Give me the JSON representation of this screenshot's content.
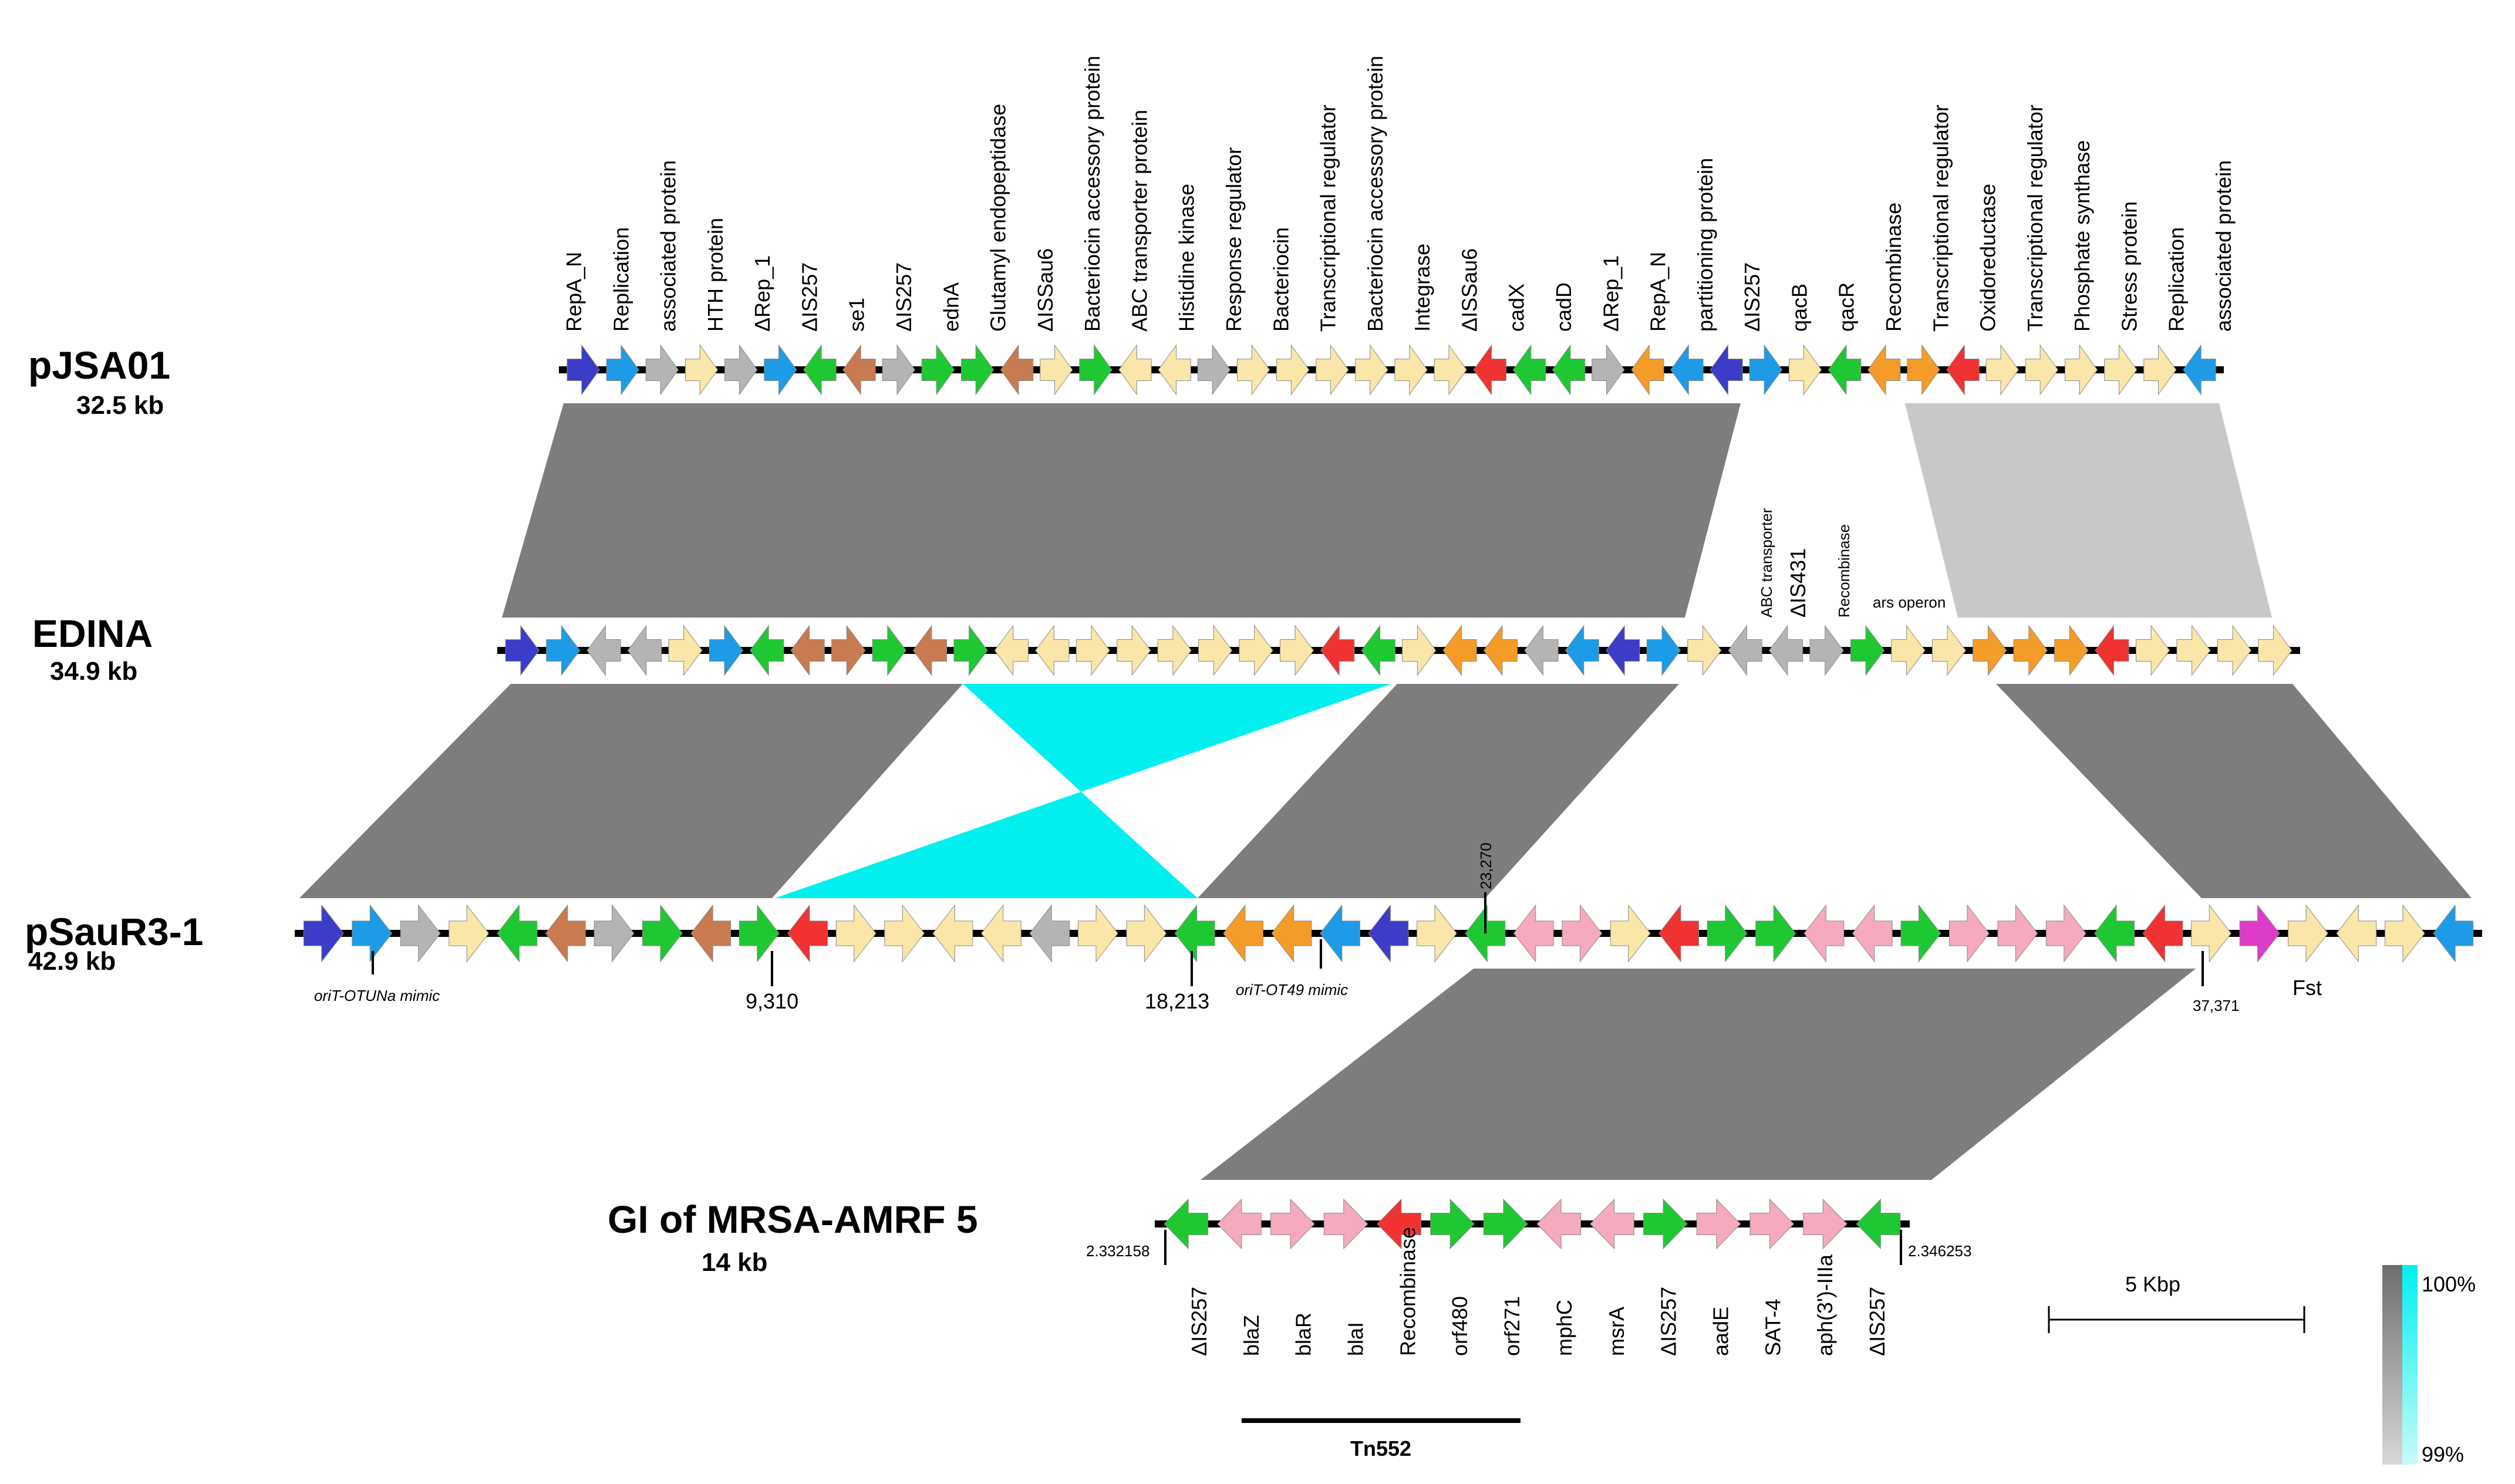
{
  "colors": {
    "blue": "#3C3CC8",
    "ltblue": "#1E9BE6",
    "gray": "#B4B4B4",
    "cream": "#FAE6A8",
    "green": "#1EC832",
    "brown": "#C87A50",
    "red": "#F03232",
    "orange": "#F59B28",
    "pink": "#F5AABE",
    "magenta": "#DC3CC8",
    "link": "#7D7D7D",
    "linkLight": "#C8C8C8",
    "cyan": "#00F0F0"
  },
  "tracks": [
    {
      "id": "pjsa01",
      "name": "pJSA01",
      "size": "32.5 kb",
      "genes": [
        [
          "blue",
          1
        ],
        [
          "ltblue",
          1
        ],
        [
          "gray",
          1
        ],
        [
          "cream",
          1
        ],
        [
          "gray",
          1
        ],
        [
          "ltblue",
          1
        ],
        [
          "green",
          -1
        ],
        [
          "brown",
          -1
        ],
        [
          "gray",
          1
        ],
        [
          "green",
          1
        ],
        [
          "green",
          1
        ],
        [
          "brown",
          -1
        ],
        [
          "cream",
          1
        ],
        [
          "green",
          1
        ],
        [
          "cream",
          -1
        ],
        [
          "cream",
          -1
        ],
        [
          "gray",
          1
        ],
        [
          "cream",
          1
        ],
        [
          "cream",
          1
        ],
        [
          "cream",
          1
        ],
        [
          "cream",
          1
        ],
        [
          "cream",
          1
        ],
        [
          "cream",
          1
        ],
        [
          "red",
          -1
        ],
        [
          "green",
          -1
        ],
        [
          "green",
          -1
        ],
        [
          "gray",
          1
        ],
        [
          "orange",
          -1
        ],
        [
          "ltblue",
          -1
        ],
        [
          "blue",
          -1
        ],
        [
          "ltblue",
          1
        ],
        [
          "cream",
          1
        ],
        [
          "green",
          -1
        ],
        [
          "orange",
          -1
        ],
        [
          "orange",
          1
        ],
        [
          "red",
          -1
        ],
        [
          "cream",
          1
        ],
        [
          "cream",
          1
        ],
        [
          "cream",
          1
        ],
        [
          "cream",
          1
        ],
        [
          "cream",
          1
        ],
        [
          "ltblue",
          -1
        ]
      ]
    },
    {
      "id": "edina",
      "name": "EDINA",
      "size": "34.9 kb",
      "genes": [
        [
          "blue",
          1
        ],
        [
          "ltblue",
          1
        ],
        [
          "gray",
          -1
        ],
        [
          "gray",
          -1
        ],
        [
          "cream",
          1
        ],
        [
          "ltblue",
          1
        ],
        [
          "green",
          -1
        ],
        [
          "brown",
          -1
        ],
        [
          "brown",
          1
        ],
        [
          "green",
          1
        ],
        [
          "brown",
          -1
        ],
        [
          "green",
          1
        ],
        [
          "cream",
          -1
        ],
        [
          "cream",
          -1
        ],
        [
          "cream",
          1
        ],
        [
          "cream",
          1
        ],
        [
          "cream",
          1
        ],
        [
          "cream",
          1
        ],
        [
          "cream",
          1
        ],
        [
          "cream",
          1
        ],
        [
          "red",
          -1
        ],
        [
          "green",
          -1
        ],
        [
          "cream",
          1
        ],
        [
          "orange",
          -1
        ],
        [
          "orange",
          -1
        ],
        [
          "gray",
          -1
        ],
        [
          "ltblue",
          -1
        ],
        [
          "blue",
          -1
        ],
        [
          "ltblue",
          1
        ],
        [
          "cream",
          1
        ],
        [
          "gray",
          -1
        ],
        [
          "gray",
          -1
        ],
        [
          "gray",
          1
        ],
        [
          "green",
          1
        ],
        [
          "cream",
          1
        ],
        [
          "cream",
          1
        ],
        [
          "orange",
          1
        ],
        [
          "orange",
          1
        ],
        [
          "orange",
          1
        ],
        [
          "red",
          -1
        ],
        [
          "cream",
          1
        ],
        [
          "cream",
          1
        ],
        [
          "cream",
          1
        ],
        [
          "cream",
          1
        ]
      ]
    },
    {
      "id": "psaur31",
      "name": "pSauR3-1",
      "size": "42.9 kb",
      "genes": [
        [
          "blue",
          1
        ],
        [
          "ltblue",
          1
        ],
        [
          "gray",
          1
        ],
        [
          "cream",
          1
        ],
        [
          "green",
          -1
        ],
        [
          "brown",
          -1
        ],
        [
          "gray",
          1
        ],
        [
          "green",
          1
        ],
        [
          "brown",
          -1
        ],
        [
          "green",
          1
        ],
        [
          "red",
          -1
        ],
        [
          "cream",
          1
        ],
        [
          "cream",
          1
        ],
        [
          "cream",
          -1
        ],
        [
          "cream",
          -1
        ],
        [
          "gray",
          -1
        ],
        [
          "cream",
          1
        ],
        [
          "cream",
          1
        ],
        [
          "green",
          -1
        ],
        [
          "orange",
          -1
        ],
        [
          "orange",
          -1
        ],
        [
          "ltblue",
          -1
        ],
        [
          "blue",
          -1
        ],
        [
          "cream",
          1
        ],
        [
          "green",
          -1
        ],
        [
          "pink",
          -1
        ],
        [
          "pink",
          1
        ],
        [
          "cream",
          1
        ],
        [
          "red",
          -1
        ],
        [
          "green",
          1
        ],
        [
          "green",
          1
        ],
        [
          "pink",
          -1
        ],
        [
          "pink",
          -1
        ],
        [
          "green",
          1
        ],
        [
          "pink",
          1
        ],
        [
          "pink",
          1
        ],
        [
          "pink",
          1
        ],
        [
          "green",
          -1
        ],
        [
          "red",
          -1
        ],
        [
          "cream",
          1
        ],
        [
          "magenta",
          1
        ],
        [
          "cream",
          1
        ],
        [
          "cream",
          -1
        ],
        [
          "cream",
          1
        ],
        [
          "ltblue",
          -1
        ]
      ]
    },
    {
      "id": "gi",
      "name": "GI of MRSA-AMRF 5",
      "size": "14 kb",
      "genes": [
        [
          "green",
          -1
        ],
        [
          "pink",
          -1
        ],
        [
          "pink",
          1
        ],
        [
          "pink",
          1
        ],
        [
          "red",
          -1
        ],
        [
          "green",
          1
        ],
        [
          "green",
          1
        ],
        [
          "pink",
          -1
        ],
        [
          "pink",
          -1
        ],
        [
          "green",
          1
        ],
        [
          "pink",
          1
        ],
        [
          "pink",
          1
        ],
        [
          "pink",
          1
        ],
        [
          "green",
          -1
        ]
      ]
    }
  ],
  "gene_labels": {
    "pjsa01": [
      "RepA_N",
      "Replication",
      "associated protein",
      "HTH protein",
      "ΔRep_1",
      "ΔIS257",
      "se1",
      "ΔIS257",
      "ednA",
      "Glutamyl endopeptidase",
      "ΔISSau6",
      "Bacteriocin accessory protein",
      "ABC transporter protein",
      "Histidine kinase",
      "Response regulator",
      "Bacteriocin",
      "Transcriptional regulator",
      "Bacteriocin accessory protein",
      "Integrase",
      "ΔISSau6",
      "cadX",
      "cadD",
      "ΔRep_1",
      "RepA_N",
      "partitioning protein",
      "ΔIS257",
      "qacB",
      "qacR",
      "Recombinase",
      "Transcriptional regulator",
      "Oxidoreductase",
      "Transcriptional regulator",
      "Phosphate synthase",
      "Stress protein",
      "Replication",
      "associated protein"
    ],
    "edina": [
      "ABC transporter",
      "ΔIS431",
      "Recombinase",
      "ars operon"
    ],
    "gi": [
      "ΔIS257",
      "blaZ",
      "blaR",
      "blaI",
      "Recombinase",
      "orf480",
      "orf271",
      "mphC",
      "msrA",
      "ΔIS257",
      "aadE",
      "SAT-4",
      "aph(3')-IIIa",
      "ΔIS257"
    ]
  },
  "positions": {
    "p9310": "9,310",
    "p18213": "18,213",
    "p23270": "23,270",
    "p37371": "37,371",
    "g_start": "2.332158",
    "g_end": "2.346253"
  },
  "annotations": {
    "oriT1": "oriT-OTUNa mimic",
    "oriT2": "oriT-OT49 mimic",
    "fst": "Fst",
    "tn": "Tn552"
  },
  "scale_bar": {
    "label": "5 Kbp"
  },
  "identity_legend": {
    "max": "100%",
    "min": "99%"
  }
}
